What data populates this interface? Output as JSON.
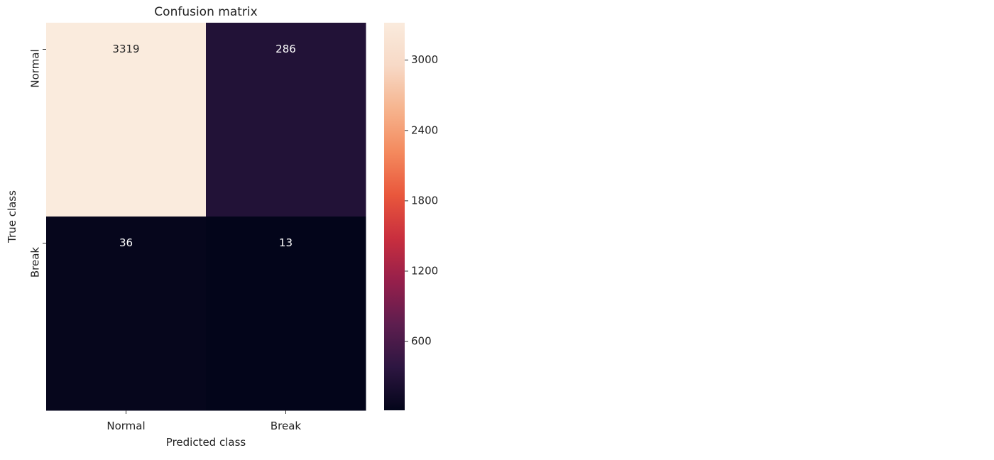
{
  "chart_data": {
    "type": "heatmap",
    "title": "Confusion matrix",
    "xlabel": "Predicted class",
    "ylabel": "True class",
    "x_categories": [
      "Normal",
      "Break"
    ],
    "y_categories": [
      "Normal",
      "Break"
    ],
    "values": [
      [
        3319,
        286
      ],
      [
        36,
        13
      ]
    ],
    "colorbar": {
      "vmin": 13,
      "vmax": 3319,
      "ticks": [
        600,
        1200,
        1800,
        2400,
        3000
      ],
      "colormap": "rocket",
      "stops": [
        "#03051a",
        "#2d1641",
        "#5e1e4f",
        "#961f4b",
        "#c92f3e",
        "#e9573c",
        "#f48a5e",
        "#f6b48e",
        "#f7d9c6",
        "#faebdd"
      ]
    },
    "grid": false,
    "legend": "none"
  }
}
